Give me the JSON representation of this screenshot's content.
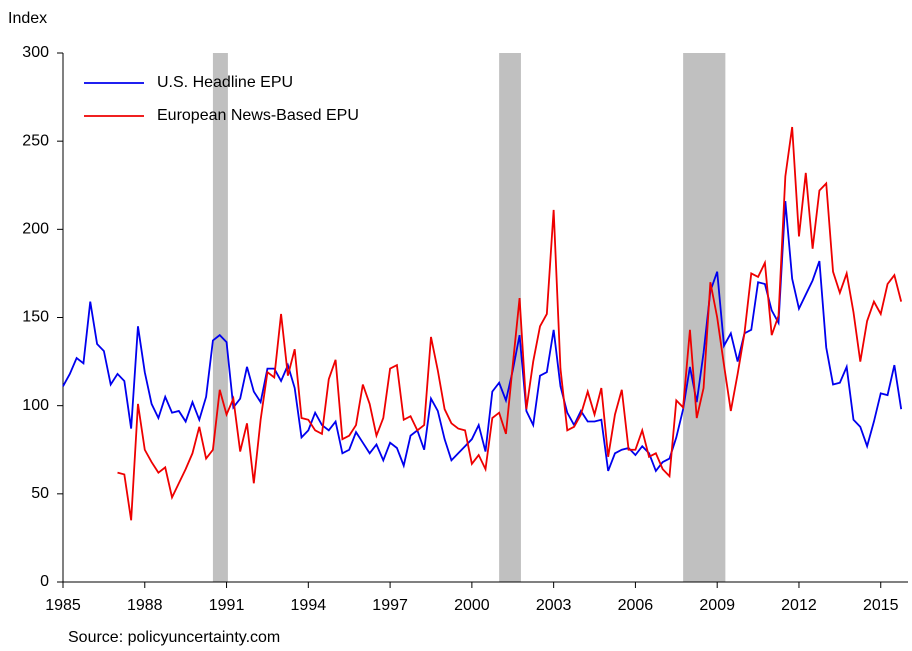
{
  "chart_data": {
    "type": "line",
    "y_label": "Index",
    "source": "Source: policyuncertainty.com",
    "x": [
      1985,
      1985.25,
      1985.5,
      1985.75,
      1986,
      1986.25,
      1986.5,
      1986.75,
      1987,
      1987.25,
      1987.5,
      1987.75,
      1988,
      1988.25,
      1988.5,
      1988.75,
      1989,
      1989.25,
      1989.5,
      1989.75,
      1990,
      1990.25,
      1990.5,
      1990.75,
      1991,
      1991.25,
      1991.5,
      1991.75,
      1992,
      1992.25,
      1992.5,
      1992.75,
      1993,
      1993.25,
      1993.5,
      1993.75,
      1994,
      1994.25,
      1994.5,
      1994.75,
      1995,
      1995.25,
      1995.5,
      1995.75,
      1996,
      1996.25,
      1996.5,
      1996.75,
      1997,
      1997.25,
      1997.5,
      1997.75,
      1998,
      1998.25,
      1998.5,
      1998.75,
      1999,
      1999.25,
      1999.5,
      1999.75,
      2000,
      2000.25,
      2000.5,
      2000.75,
      2001,
      2001.25,
      2001.5,
      2001.75,
      2002,
      2002.25,
      2002.5,
      2002.75,
      2003,
      2003.25,
      2003.5,
      2003.75,
      2004,
      2004.25,
      2004.5,
      2004.75,
      2005,
      2005.25,
      2005.5,
      2005.75,
      2006,
      2006.25,
      2006.5,
      2006.75,
      2007,
      2007.25,
      2007.5,
      2007.75,
      2008,
      2008.25,
      2008.5,
      2008.75,
      2009,
      2009.25,
      2009.5,
      2009.75,
      2010,
      2010.25,
      2010.5,
      2010.75,
      2011,
      2011.25,
      2011.5,
      2011.75,
      2012,
      2012.25,
      2012.5,
      2012.75,
      2013,
      2013.25,
      2013.5,
      2013.75,
      2014,
      2014.25,
      2014.5,
      2014.75,
      2015,
      2015.25,
      2015.5,
      2015.75
    ],
    "series": [
      {
        "name": "U.S. Headline EPU",
        "color": "#0000ee",
        "values": [
          111,
          118,
          127,
          124,
          159,
          135,
          131,
          112,
          118,
          114,
          87,
          145,
          119,
          101,
          93,
          105,
          96,
          97,
          91,
          102,
          92,
          105,
          137,
          140,
          136,
          99,
          104,
          122,
          108,
          102,
          121,
          121,
          114,
          123,
          110,
          82,
          86,
          96,
          89,
          86,
          91,
          73,
          75,
          85,
          79,
          73,
          78,
          69,
          79,
          76,
          66,
          83,
          86,
          75,
          104,
          97,
          81,
          69,
          73,
          77,
          81,
          89,
          74,
          108,
          113,
          103,
          120,
          140,
          97,
          89,
          117,
          119,
          143,
          111,
          96,
          89,
          97,
          91,
          91,
          92,
          63,
          73,
          75,
          76,
          72,
          77,
          73,
          63,
          68,
          70,
          82,
          98,
          122,
          102,
          130,
          165,
          176,
          134,
          141,
          125,
          141,
          143,
          170,
          169,
          154,
          147,
          216,
          172,
          155,
          163,
          171,
          182,
          133,
          112,
          113,
          122,
          92,
          88,
          77,
          91,
          107,
          106,
          123,
          98
        ]
      },
      {
        "name": "European News-Based EPU",
        "color": "#ee0000",
        "values": [
          null,
          null,
          null,
          null,
          null,
          null,
          null,
          null,
          62,
          61,
          35,
          101,
          75,
          68,
          62,
          65,
          48,
          56,
          64,
          73,
          88,
          70,
          75,
          109,
          95,
          104,
          74,
          90,
          56,
          92,
          119,
          116,
          152,
          117,
          132,
          93,
          92,
          86,
          84,
          115,
          126,
          81,
          83,
          89,
          112,
          101,
          83,
          93,
          121,
          123,
          92,
          94,
          86,
          89,
          139,
          120,
          98,
          90,
          87,
          86,
          67,
          72,
          64,
          93,
          96,
          84,
          123,
          161,
          98,
          125,
          145,
          152,
          211,
          121,
          86,
          88,
          95,
          108,
          95,
          110,
          71,
          95,
          109,
          75,
          75,
          86,
          71,
          73,
          64,
          60,
          103,
          99,
          143,
          93,
          110,
          170,
          150,
          123,
          97,
          118,
          141,
          175,
          173,
          181,
          140,
          151,
          230,
          258,
          196,
          232,
          189,
          222,
          226,
          176,
          164,
          175,
          153,
          125,
          148,
          159,
          152,
          169,
          174,
          159
        ]
      }
    ],
    "recessions": [
      [
        1990.5,
        1991.05
      ],
      [
        2001.0,
        2001.8
      ],
      [
        2007.75,
        2009.3
      ]
    ],
    "recession_color": "#c0c0c0",
    "xlim": [
      1985,
      2016
    ],
    "xticks": [
      1985,
      1988,
      1991,
      1994,
      1997,
      2000,
      2003,
      2006,
      2009,
      2012,
      2015
    ],
    "ylim": [
      0,
      300
    ],
    "yticks": [
      0,
      50,
      100,
      150,
      200,
      250,
      300
    ],
    "legend": "upper left"
  }
}
